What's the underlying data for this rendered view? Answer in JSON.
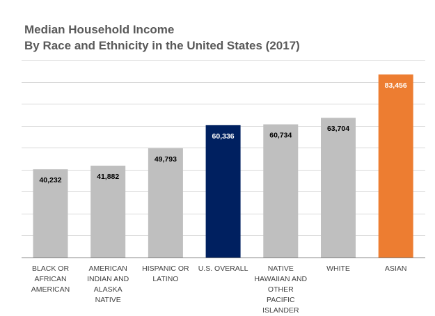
{
  "chart_data": {
    "type": "bar",
    "title": "Median Household Income",
    "subtitle": "By Race and Ethnicity in the United States (2017)",
    "categories": [
      "BLACK OR\nAFRICAN\nAMERICAN",
      "AMERICAN\nINDIAN AND\nALASKA NATIVE",
      "HISPANIC OR\nLATINO",
      "U.S. OVERALL",
      "NATIVE\nHAWAIIAN AND\nOTHER PACIFIC\nISLANDER",
      "WHITE",
      "ASIAN"
    ],
    "values": [
      40232,
      41882,
      49793,
      60336,
      60734,
      63704,
      83456
    ],
    "value_labels": [
      "40,232",
      "41,882",
      "49,793",
      "60,336",
      "60,734",
      "63,704",
      "83,456"
    ],
    "bar_colors": [
      "#bfbfbf",
      "#bfbfbf",
      "#bfbfbf",
      "#002060",
      "#bfbfbf",
      "#bfbfbf",
      "#ed7d31"
    ],
    "label_colors": [
      "#000000",
      "#000000",
      "#000000",
      "#ffffff",
      "#000000",
      "#000000",
      "#ffffff"
    ],
    "xlabel": "",
    "ylabel": "",
    "ylim": [
      0,
      90000
    ],
    "ytick_step": 10000,
    "grid": true,
    "legend": "none"
  }
}
